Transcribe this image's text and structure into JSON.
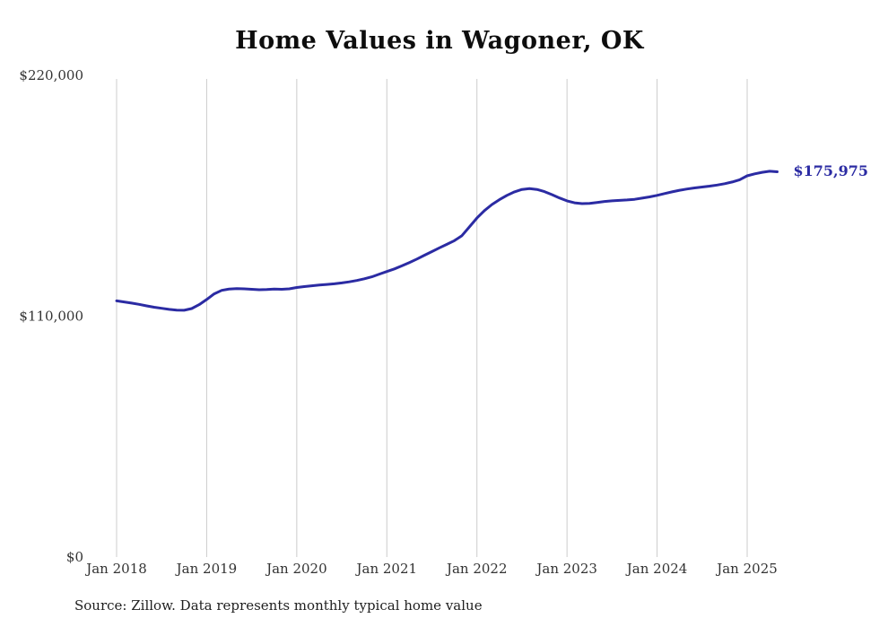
{
  "chart_data": {
    "type": "line",
    "title": "Home Values in Wagoner, OK",
    "source": "Source: Zillow. Data represents monthly typical home value",
    "end_label": "$175,975",
    "latest_value": 175975,
    "ylim": [
      0,
      220000
    ],
    "yticks": [
      {
        "value": 220000,
        "label": "$220,000"
      },
      {
        "value": 110000,
        "label": "$110,000"
      },
      {
        "value": 0,
        "label": "$0"
      }
    ],
    "xticks": [
      "Jan 2018",
      "Jan 2019",
      "Jan 2020",
      "Jan 2021",
      "Jan 2022",
      "Jan 2023",
      "Jan 2024",
      "Jan 2025"
    ],
    "line_color": "#2b2ba3",
    "gridline_color": "#cccccc",
    "legend": "off",
    "grid": "vertical-only",
    "x": [
      "2018-01",
      "2018-02",
      "2018-03",
      "2018-04",
      "2018-05",
      "2018-06",
      "2018-07",
      "2018-08",
      "2018-09",
      "2018-10",
      "2018-11",
      "2018-12",
      "2019-01",
      "2019-02",
      "2019-03",
      "2019-04",
      "2019-05",
      "2019-06",
      "2019-07",
      "2019-08",
      "2019-09",
      "2019-10",
      "2019-11",
      "2019-12",
      "2020-01",
      "2020-02",
      "2020-03",
      "2020-04",
      "2020-05",
      "2020-06",
      "2020-07",
      "2020-08",
      "2020-09",
      "2020-10",
      "2020-11",
      "2020-12",
      "2021-01",
      "2021-02",
      "2021-03",
      "2021-04",
      "2021-05",
      "2021-06",
      "2021-07",
      "2021-08",
      "2021-09",
      "2021-10",
      "2021-11",
      "2021-12",
      "2022-01",
      "2022-02",
      "2022-03",
      "2022-04",
      "2022-05",
      "2022-06",
      "2022-07",
      "2022-08",
      "2022-09",
      "2022-10",
      "2022-11",
      "2022-12",
      "2023-01",
      "2023-02",
      "2023-03",
      "2023-04",
      "2023-05",
      "2023-06",
      "2023-07",
      "2023-08",
      "2023-09",
      "2023-10",
      "2023-11",
      "2023-12",
      "2024-01",
      "2024-02",
      "2024-03",
      "2024-04",
      "2024-05",
      "2024-06",
      "2024-07",
      "2024-08",
      "2024-09",
      "2024-10",
      "2024-11",
      "2024-12",
      "2025-01",
      "2025-02",
      "2025-03",
      "2025-04",
      "2025-05"
    ],
    "series": [
      {
        "name": "Typical home value",
        "values": [
          117000,
          116500,
          116000,
          115400,
          114700,
          114100,
          113600,
          113100,
          112800,
          112700,
          113500,
          115300,
          117600,
          120200,
          121800,
          122400,
          122600,
          122500,
          122300,
          122100,
          122200,
          122400,
          122300,
          122500,
          123100,
          123500,
          123900,
          124200,
          124500,
          124800,
          125200,
          125700,
          126300,
          127100,
          128000,
          129200,
          130400,
          131600,
          133000,
          134500,
          136100,
          137800,
          139500,
          141200,
          142800,
          144500,
          146800,
          150800,
          154800,
          158200,
          161000,
          163200,
          165200,
          166800,
          167900,
          168300,
          167900,
          166900,
          165500,
          164000,
          162700,
          161800,
          161400,
          161500,
          161900,
          162400,
          162700,
          162900,
          163100,
          163400,
          163900,
          164500,
          165200,
          166000,
          166800,
          167500,
          168100,
          168600,
          169000,
          169400,
          169900,
          170500,
          171300,
          172300,
          174100,
          175000,
          175700,
          176200,
          175975
        ]
      }
    ]
  }
}
